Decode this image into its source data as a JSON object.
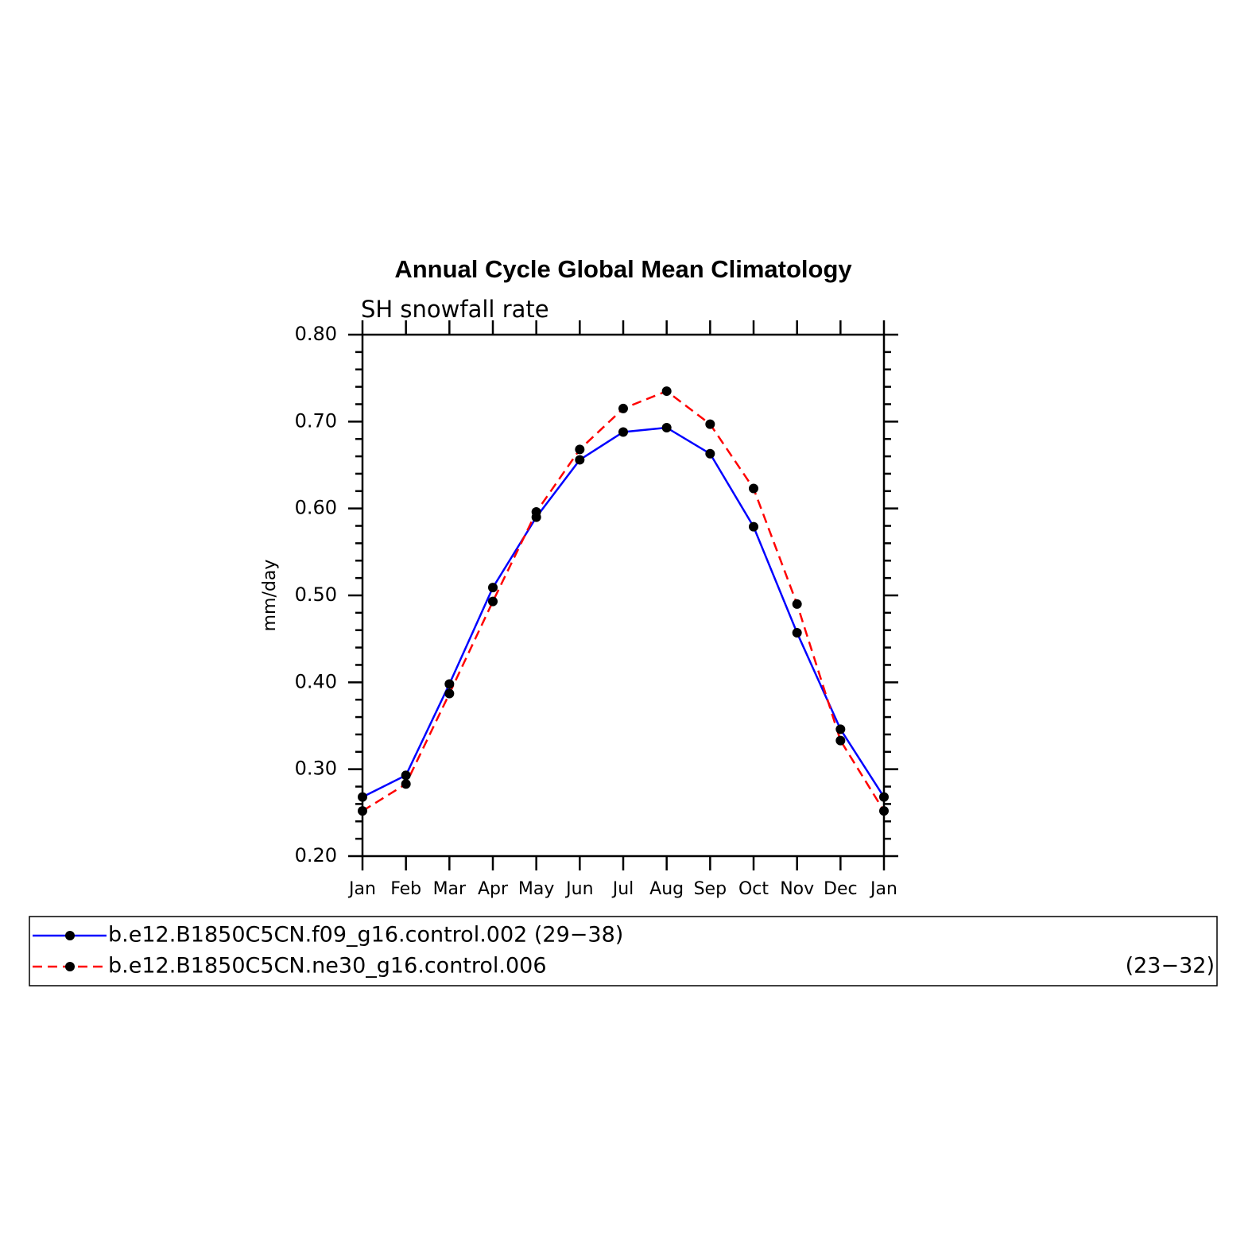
{
  "chart_data": {
    "type": "line",
    "title": "Annual Cycle Global Mean Climatology",
    "subtitle": "SH snowfall rate",
    "ylabel": "mm/day",
    "categories": [
      "Jan",
      "Feb",
      "Mar",
      "Apr",
      "May",
      "Jun",
      "Jul",
      "Aug",
      "Sep",
      "Oct",
      "Nov",
      "Dec",
      "Jan"
    ],
    "series": [
      {
        "name": "b.e12.B1850C5CN.f09_g16.control.002 (29−38)",
        "color": "#0000ff",
        "dash": false,
        "values": [
          0.268,
          0.293,
          0.398,
          0.509,
          0.59,
          0.656,
          0.688,
          0.693,
          0.663,
          0.579,
          0.457,
          0.346,
          0.268
        ]
      },
      {
        "name": "b.e12.B1850C5CN.ne30_g16.control.006",
        "suffix": "(23−32)",
        "color": "#ff0000",
        "dash": true,
        "values": [
          0.252,
          0.283,
          0.387,
          0.493,
          0.596,
          0.668,
          0.715,
          0.735,
          0.697,
          0.623,
          0.49,
          0.333,
          0.252
        ]
      }
    ],
    "ylim": [
      0.2,
      0.8
    ],
    "yticks": [
      {
        "value": 0.2,
        "label": "0.20"
      },
      {
        "value": 0.3,
        "label": "0.30"
      },
      {
        "value": 0.4,
        "label": "0.40"
      },
      {
        "value": 0.5,
        "label": "0.50"
      },
      {
        "value": 0.6,
        "label": "0.60"
      },
      {
        "value": 0.7,
        "label": "0.70"
      },
      {
        "value": 0.8,
        "label": "0.80"
      }
    ],
    "marker_color": "#000000"
  }
}
